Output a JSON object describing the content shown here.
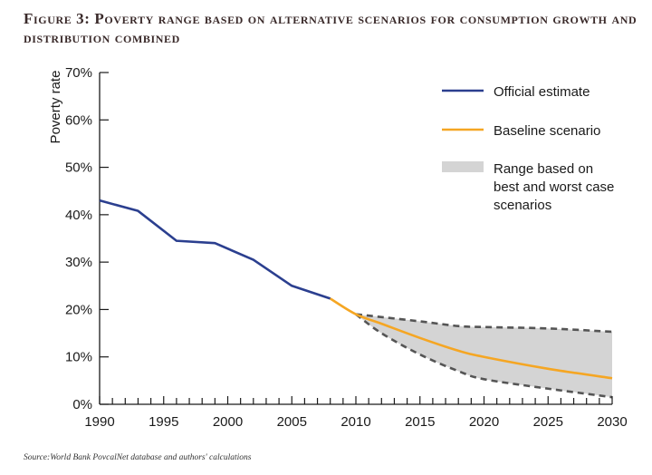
{
  "figure": {
    "title": "Figure 3: Poverty range based on alternative scenarios for consumption growth and distribution combined",
    "source": "Source:World Bank PovcalNet database and authors' calculations"
  },
  "chart_data": {
    "type": "line",
    "ylabel": "Poverty rate",
    "xlabel": "",
    "xlim": [
      1990,
      2030
    ],
    "ylim": [
      0,
      70
    ],
    "x_ticks": [
      "1990",
      "1995",
      "2000",
      "2005",
      "2010",
      "2015",
      "2020",
      "2025",
      "2030"
    ],
    "y_ticks": [
      "0%",
      "10%",
      "20%",
      "30%",
      "40%",
      "50%",
      "60%",
      "70%"
    ],
    "legend_position": "top-right",
    "series": [
      {
        "name": "Official estimate",
        "color": "#2b3f8f",
        "points": [
          [
            1990,
            43
          ],
          [
            1993,
            40.8
          ],
          [
            1996,
            34.5
          ],
          [
            1999,
            34
          ],
          [
            2002,
            30.5
          ],
          [
            2005,
            25
          ],
          [
            2008,
            22.3
          ]
        ]
      },
      {
        "name": "Baseline scenario",
        "color": "#f5a623",
        "points": [
          [
            2008,
            22.3
          ],
          [
            2010,
            19
          ],
          [
            2012,
            17
          ],
          [
            2015,
            14
          ],
          [
            2018,
            11.3
          ],
          [
            2020,
            10
          ],
          [
            2025,
            7.5
          ],
          [
            2030,
            5.5
          ]
        ]
      }
    ],
    "range": {
      "name": "Range based on best and worst case scenarios",
      "fill": "#d4d4d4",
      "edge_color": "#555555",
      "upper": [
        [
          2010,
          19
        ],
        [
          2015,
          17.5
        ],
        [
          2018,
          16.5
        ],
        [
          2020,
          16.3
        ],
        [
          2025,
          16
        ],
        [
          2030,
          15.3
        ]
      ],
      "lower": [
        [
          2010,
          19
        ],
        [
          2012,
          15
        ],
        [
          2015,
          10.5
        ],
        [
          2018,
          7
        ],
        [
          2020,
          5.3
        ],
        [
          2025,
          3.3
        ],
        [
          2030,
          1.5
        ]
      ]
    },
    "legend_lines": {
      "official": [
        "Official estimate"
      ],
      "baseline": [
        "Baseline scenario"
      ],
      "range": [
        "Range based on",
        "best and worst case",
        "scenarios"
      ]
    }
  }
}
